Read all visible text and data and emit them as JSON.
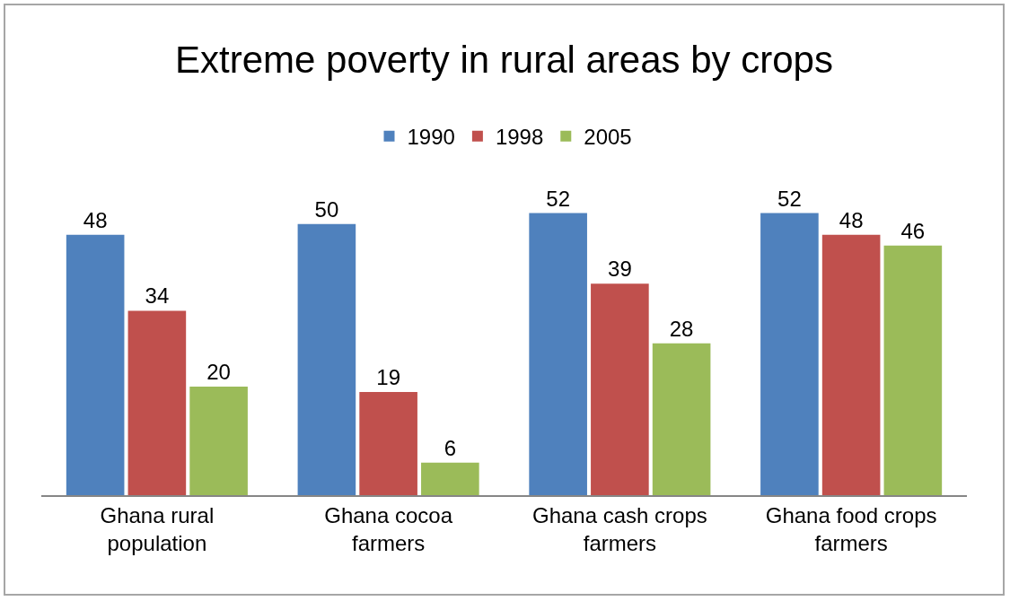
{
  "chart_data": {
    "type": "bar",
    "title": "Extreme poverty in rural areas by crops",
    "categories": [
      "Ghana rural population",
      "Ghana cocoa farmers",
      "Ghana cash crops farmers",
      "Ghana food crops farmers"
    ],
    "series": [
      {
        "name": "1990",
        "color": "#4f81bd",
        "values": [
          48,
          50,
          52,
          52
        ]
      },
      {
        "name": "1998",
        "color": "#c0504d",
        "values": [
          34,
          19,
          39,
          48
        ]
      },
      {
        "name": "2005",
        "color": "#9bbb59",
        "values": [
          20,
          6,
          28,
          46
        ]
      }
    ],
    "data_labels": true,
    "grid": false,
    "legend": "top"
  }
}
